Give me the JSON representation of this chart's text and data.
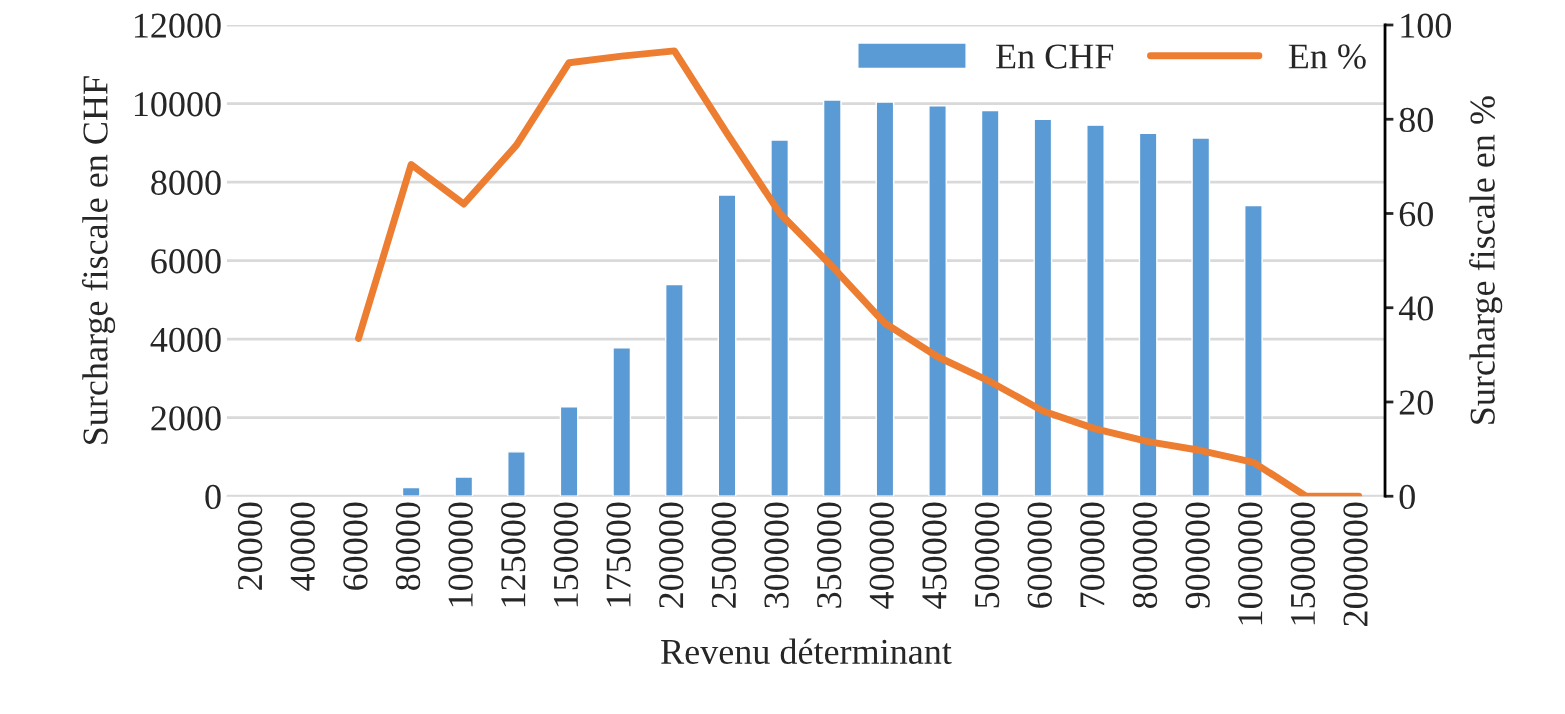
{
  "chart_data": {
    "type": "bar",
    "xlabel": "Revenu déterminant",
    "ylabel": "Surcharge fiscale en CHF",
    "y2label": "Surcharge fiscale en %",
    "categories": [
      "20000",
      "40000",
      "60000",
      "80000",
      "100000",
      "125000",
      "150000",
      "175000",
      "200000",
      "250000",
      "300000",
      "350000",
      "400000",
      "450000",
      "500000",
      "600000",
      "700000",
      "800000",
      "900000",
      "1000000",
      "1500000",
      "2000000"
    ],
    "series": [
      {
        "name": "En CHF",
        "color": "#5b9bd5",
        "values": [
          null,
          null,
          null,
          220,
          490,
          1130,
          2280,
          3780,
          5390,
          7670,
          9070,
          10090,
          10040,
          9940,
          9820,
          9600,
          9450,
          9240,
          9120,
          7400,
          null,
          null
        ]
      },
      {
        "name": "En %",
        "type": "line",
        "axis": "y2",
        "color": "#ed7d31",
        "values": [
          null,
          null,
          33.5,
          70.4,
          62,
          74.5,
          92,
          93.4,
          94.5,
          77,
          60.1,
          48.7,
          36.7,
          29.6,
          24.3,
          18.1,
          14.3,
          11.6,
          9.7,
          7.2,
          0,
          0
        ]
      }
    ],
    "ylim": [
      0,
      12000
    ],
    "yticks": [
      0,
      2000,
      4000,
      6000,
      8000,
      10000,
      12000
    ],
    "y2lim": [
      0,
      100
    ],
    "y2ticks": [
      0,
      20,
      40,
      60,
      80,
      100
    ],
    "grid": "y",
    "legend": "top right"
  }
}
